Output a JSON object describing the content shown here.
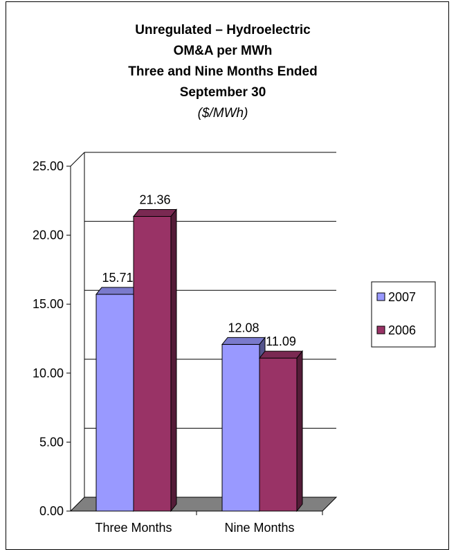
{
  "chart_data": {
    "type": "bar",
    "title_lines": [
      "Unregulated  –  Hydroelectric",
      "OM&A per MWh",
      "Three and Nine Months Ended",
      "September 30"
    ],
    "unit": "($/MWh)",
    "categories": [
      "Three Months",
      "Nine Months"
    ],
    "series": [
      {
        "name": "2007",
        "values": [
          15.71,
          12.08
        ],
        "labels": [
          "15.71",
          "12.08"
        ],
        "color": "#9999ff"
      },
      {
        "name": "2006",
        "values": [
          21.36,
          11.09
        ],
        "labels": [
          "21.36",
          "11.09"
        ],
        "color": "#993366"
      }
    ],
    "yticks": [
      "0.00",
      "5.00",
      "10.00",
      "15.00",
      "20.00",
      "25.00"
    ],
    "ylim": [
      0,
      25
    ],
    "grid": true,
    "legend": "right"
  }
}
